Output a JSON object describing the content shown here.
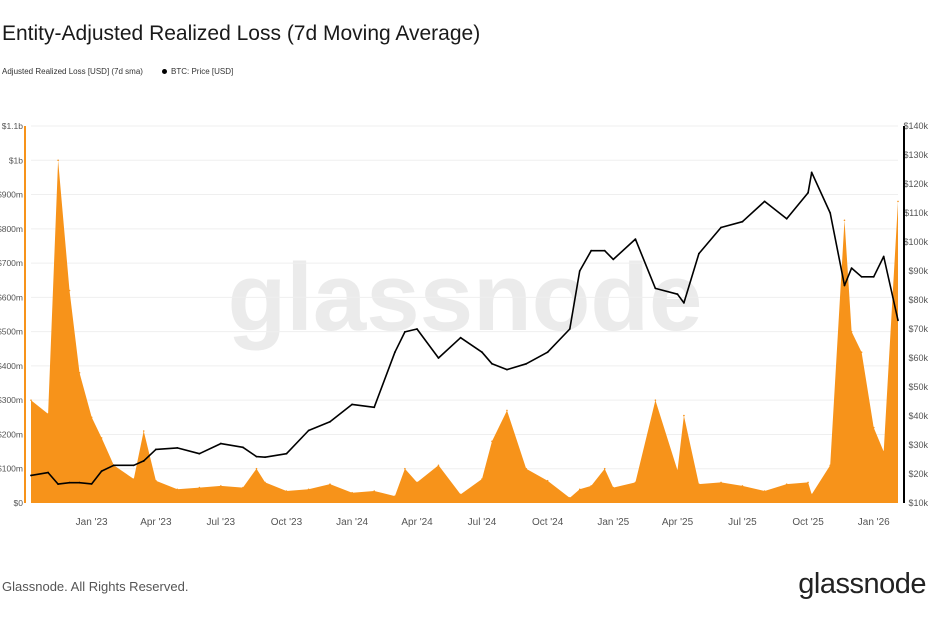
{
  "title": "Entity-Adjusted Realized Loss (7d Moving Average)",
  "legend": [
    {
      "label": "Adjusted Realized Loss [USD] (7d sma)",
      "color": "#f7931a"
    },
    {
      "label": "BTC: Price [USD]",
      "color": "#000000"
    }
  ],
  "watermark": "glassnode",
  "footer": "Glassnode. All Rights Reserved.",
  "logo": "glassnode",
  "chart_data": {
    "type": "area",
    "title": "Entity-Adjusted Realized Loss (7d Moving Average)",
    "x_ticks": [
      "Jan '23",
      "Apr '23",
      "Jul '23",
      "Oct '23",
      "Jan '24",
      "Apr '24",
      "Jul '24",
      "Oct '24",
      "Jan '25",
      "Apr '25",
      "Jul '25",
      "Oct '25",
      "Jan '26"
    ],
    "x_tick_dates": [
      "2023-01-01",
      "2023-04-01",
      "2023-07-01",
      "2023-10-01",
      "2024-01-01",
      "2024-04-01",
      "2024-07-01",
      "2024-10-01",
      "2025-01-01",
      "2025-04-01",
      "2025-07-01",
      "2025-10-01",
      "2026-01-01"
    ],
    "xlim": [
      "2022-10-08",
      "2026-02-04"
    ],
    "y_left": {
      "ticks": [
        "$0",
        "$100m",
        "$200m",
        "$300m",
        "$400m",
        "$500m",
        "$600m",
        "$700m",
        "$800m",
        "$900m",
        "$1b",
        "$1.1b"
      ],
      "ylim": [
        0,
        1100
      ],
      "unit": "USD millions"
    },
    "y_right": {
      "ticks": [
        "$10k",
        "$20k",
        "$30k",
        "$40k",
        "$50k",
        "$60k",
        "$70k",
        "$80k",
        "$90k",
        "$100k",
        "$110k",
        "$120k",
        "$130k",
        "$140k"
      ],
      "ylim": [
        10,
        140
      ],
      "unit": "USD thousands"
    },
    "grid": true,
    "legend_position": "top-left",
    "x": [
      "2022-10-08",
      "2022-11-01",
      "2022-11-15",
      "2022-12-01",
      "2022-12-15",
      "2023-01-01",
      "2023-01-15",
      "2023-02-01",
      "2023-03-01",
      "2023-03-15",
      "2023-04-01",
      "2023-05-01",
      "2023-06-01",
      "2023-07-01",
      "2023-08-01",
      "2023-08-20",
      "2023-09-01",
      "2023-10-01",
      "2023-11-01",
      "2023-12-01",
      "2024-01-01",
      "2024-02-01",
      "2024-03-01",
      "2024-03-15",
      "2024-04-01",
      "2024-05-01",
      "2024-06-01",
      "2024-07-01",
      "2024-07-15",
      "2024-08-05",
      "2024-09-01",
      "2024-10-01",
      "2024-11-01",
      "2024-11-15",
      "2024-12-01",
      "2024-12-20",
      "2025-01-01",
      "2025-02-01",
      "2025-03-01",
      "2025-04-01",
      "2025-04-10",
      "2025-05-01",
      "2025-06-01",
      "2025-07-01",
      "2025-08-01",
      "2025-09-01",
      "2025-10-01",
      "2025-10-06",
      "2025-11-01",
      "2025-11-21",
      "2025-12-01",
      "2025-12-15",
      "2026-01-01",
      "2026-01-15",
      "2026-02-04"
    ],
    "series": [
      {
        "name": "Adjusted Realized Loss [USD] (7d sma)",
        "axis": "left",
        "type": "area",
        "color": "#f7931a",
        "values": [
          300,
          260,
          1000,
          620,
          380,
          250,
          190,
          110,
          70,
          210,
          65,
          40,
          45,
          50,
          45,
          100,
          60,
          35,
          40,
          55,
          30,
          35,
          20,
          100,
          60,
          110,
          25,
          70,
          180,
          270,
          100,
          65,
          15,
          40,
          50,
          100,
          45,
          60,
          300,
          95,
          255,
          55,
          60,
          50,
          35,
          55,
          60,
          25,
          110,
          825,
          500,
          440,
          220,
          150,
          880
        ]
      },
      {
        "name": "BTC: Price [USD]",
        "axis": "right",
        "type": "line",
        "color": "#000000",
        "values": [
          19.5,
          20.5,
          16.5,
          17,
          17,
          16.6,
          21,
          23,
          23,
          24.5,
          28.5,
          29,
          27,
          30.5,
          29.2,
          26,
          25.8,
          27,
          35,
          38,
          44,
          43,
          62,
          69,
          70,
          60,
          67,
          62,
          58,
          56,
          58,
          62,
          70,
          90,
          97,
          97,
          94,
          101,
          84,
          82,
          79,
          96,
          105,
          107,
          114,
          108,
          117,
          124,
          110,
          85,
          91,
          88,
          88,
          95,
          73
        ]
      }
    ]
  }
}
